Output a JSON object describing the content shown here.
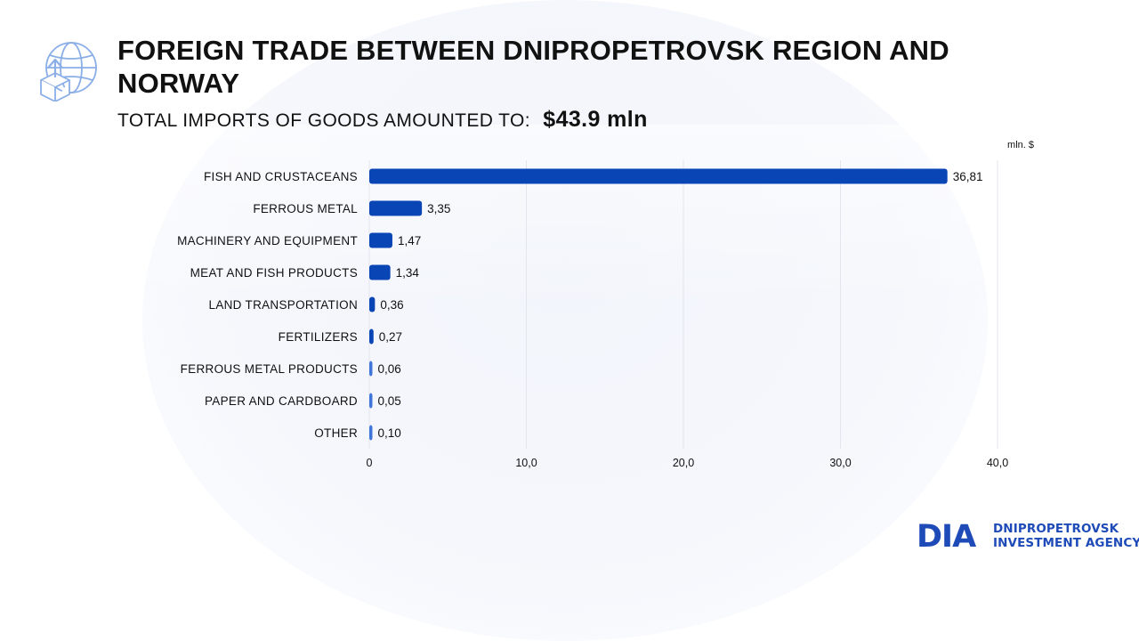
{
  "header": {
    "title": "FOREIGN TRADE BETWEEN DNIPROPETROVSK REGION AND NORWAY",
    "subtitle_label": "TOTAL IMPORTS OF GOODS AMOUNTED TO:",
    "subtitle_amount": "$43.9 mln",
    "icon": "globe-export-box-icon"
  },
  "brand": {
    "mark": "DIA",
    "name_line1": "DNIPROPETROVSK",
    "name_line2": "INVESTMENT AGENCY"
  },
  "colors": {
    "bar": "#0a45b5",
    "small_bar": "#3f74d9",
    "text": "#111111",
    "grid": "#e3e6ee",
    "brand": "#1e4bb8"
  },
  "chart_data": {
    "type": "bar",
    "orientation": "horizontal",
    "unit_label": "mln. $",
    "categories": [
      "FISH AND CRUSTACEANS",
      "FERROUS METAL",
      "MACHINERY AND EQUIPMENT",
      "MEAT AND FISH PRODUCTS",
      "LAND TRANSPORTATION",
      "FERTILIZERS",
      "FERROUS METAL PRODUCTS",
      "PAPER AND CARDBOARD",
      "OTHER"
    ],
    "values": [
      36.81,
      3.35,
      1.47,
      1.34,
      0.36,
      0.27,
      0.06,
      0.05,
      0.1
    ],
    "value_labels": [
      "36,81",
      "3,35",
      "1,47",
      "1,34",
      "0,36",
      "0,27",
      "0,06",
      "0,05",
      "0,10"
    ],
    "xlim": [
      0,
      40
    ],
    "x_ticks": [
      0,
      10,
      20,
      30,
      40
    ],
    "x_tick_labels": [
      "0",
      "10,0",
      "20,0",
      "30,0",
      "40,0"
    ],
    "grid": true,
    "legend": "none"
  }
}
